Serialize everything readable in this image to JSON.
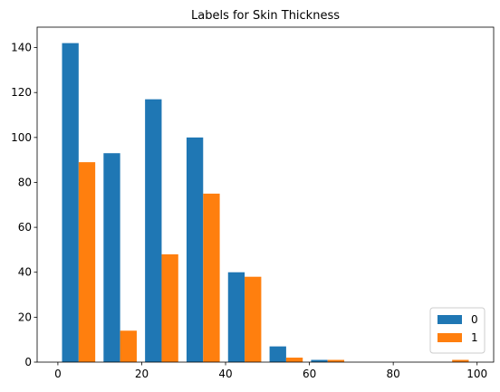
{
  "chart_data": {
    "type": "histogram",
    "title": "Labels for Skin Thickness",
    "bins": [
      0,
      9.9,
      19.8,
      29.7,
      39.6,
      49.5,
      59.4,
      69.3,
      79.2,
      89.1,
      99
    ],
    "series": [
      {
        "name": "0",
        "color": "#1f77b4",
        "values": [
          142,
          93,
          117,
          100,
          40,
          7,
          1,
          0,
          0,
          0
        ]
      },
      {
        "name": "1",
        "color": "#ff7f0e",
        "values": [
          89,
          14,
          48,
          75,
          38,
          2,
          1,
          0,
          0,
          1
        ]
      }
    ],
    "xlim": [
      -4.95,
      103.95
    ],
    "xticks": [
      0,
      20,
      40,
      60,
      80,
      100
    ],
    "ylim": [
      0,
      149.1
    ],
    "yticks": [
      0,
      20,
      40,
      60,
      80,
      100,
      120,
      140
    ],
    "legend": "lower right"
  }
}
